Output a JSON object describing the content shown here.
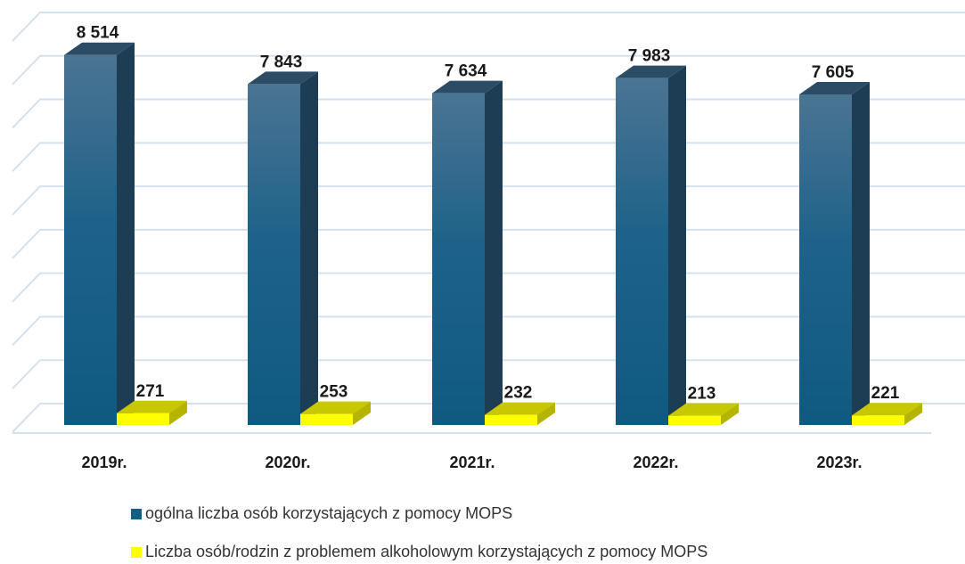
{
  "chart_data": {
    "type": "bar3d",
    "categories": [
      "2019r.",
      "2020r.",
      "2021r.",
      "2022r.",
      "2023r."
    ],
    "series": [
      {
        "name": "ogólna liczba osób korzystających z pomocy MOPS",
        "color": "#135e85",
        "values": [
          8514,
          7843,
          7634,
          7983,
          7605
        ],
        "value_labels": [
          "8 514",
          "7 843",
          "7 634",
          "7 983",
          "7 605"
        ]
      },
      {
        "name": "Liczba osób/rodzin z problemem alkoholowym korzystających z pomocy MOPS",
        "color": "#ffff00",
        "values": [
          271,
          253,
          232,
          213,
          221
        ]
      }
    ],
    "ylim": [
      0,
      9000
    ],
    "yticks": [
      0,
      1000,
      2000,
      3000,
      4000,
      5000,
      6000,
      7000,
      8000,
      9000
    ],
    "grid": true
  }
}
